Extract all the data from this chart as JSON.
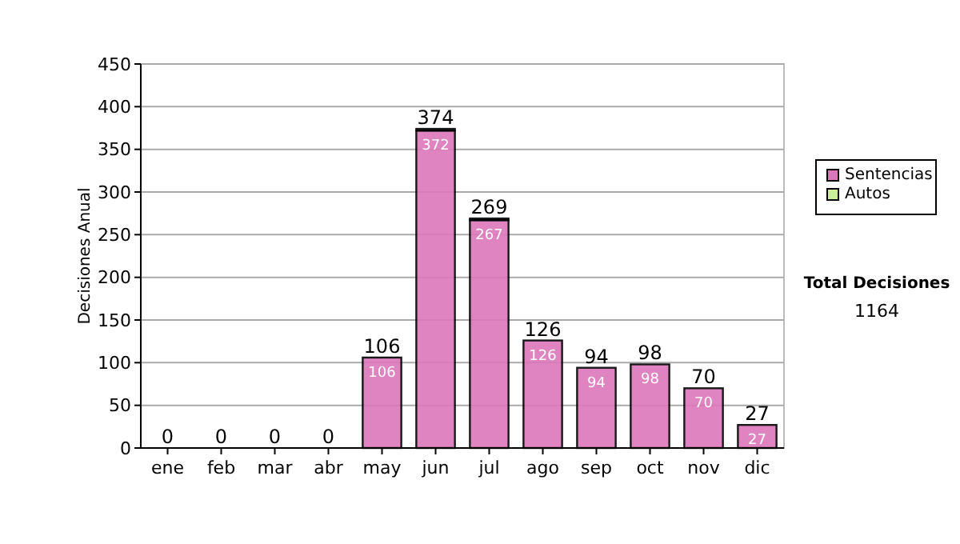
{
  "chart_data": {
    "type": "bar",
    "stacked": true,
    "ylabel": "Decisiones Anual",
    "categories": [
      "ene",
      "feb",
      "mar",
      "abr",
      "may",
      "jun",
      "jul",
      "ago",
      "sep",
      "oct",
      "nov",
      "dic"
    ],
    "series": [
      {
        "name": "Sentencias",
        "color": "#dd77bb",
        "values": [
          0,
          0,
          0,
          0,
          106,
          372,
          267,
          126,
          94,
          98,
          70,
          27
        ],
        "value_labels": [
          null,
          null,
          null,
          null,
          "106",
          "372",
          "267",
          "126",
          "94",
          "98",
          "70",
          "27"
        ]
      },
      {
        "name": "Autos",
        "color": "#ccee99",
        "values": [
          0,
          0,
          0,
          0,
          0,
          2,
          2,
          0,
          0,
          0,
          0,
          0
        ]
      }
    ],
    "totals": [
      "0",
      "0",
      "0",
      "0",
      "106",
      "374",
      "269",
      "126",
      "94",
      "98",
      "70",
      "27"
    ],
    "ylim": [
      0,
      450
    ],
    "yticks": [
      0,
      50,
      100,
      150,
      200,
      250,
      300,
      350,
      400,
      450
    ],
    "grid": "y",
    "legend": "right",
    "annotations": [
      "Total Decisiones",
      "1164"
    ]
  }
}
